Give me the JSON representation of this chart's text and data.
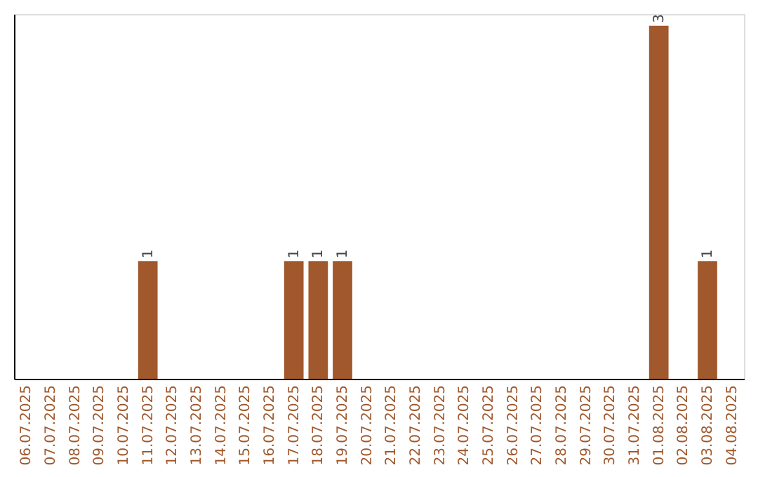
{
  "chart_data": {
    "type": "bar",
    "categories": [
      "06.07.2025",
      "07.07.2025",
      "08.07.2025",
      "09.07.2025",
      "10.07.2025",
      "11.07.2025",
      "12.07.2025",
      "13.07.2025",
      "14.07.2025",
      "15.07.2025",
      "16.07.2025",
      "17.07.2025",
      "18.07.2025",
      "19.07.2025",
      "20.07.2025",
      "21.07.2025",
      "22.07.2025",
      "23.07.2025",
      "24.07.2025",
      "25.07.2025",
      "26.07.2025",
      "27.07.2025",
      "28.07.2025",
      "29.07.2025",
      "30.07.2025",
      "31.07.2025",
      "01.08.2025",
      "02.08.2025",
      "03.08.2025",
      "04.08.2025"
    ],
    "values": [
      0,
      0,
      0,
      0,
      0,
      1,
      0,
      0,
      0,
      0,
      0,
      1,
      1,
      1,
      0,
      0,
      0,
      0,
      0,
      0,
      0,
      0,
      0,
      0,
      0,
      0,
      3,
      0,
      1,
      0
    ],
    "value_labels": [
      null,
      null,
      null,
      null,
      null,
      "1",
      null,
      null,
      null,
      null,
      null,
      "1",
      "1",
      "1",
      null,
      null,
      null,
      null,
      null,
      null,
      null,
      null,
      null,
      null,
      null,
      null,
      "3",
      null,
      "1",
      null
    ],
    "color": "#a0582c",
    "ylim": [
      0,
      3.1
    ],
    "tick_labels": "x"
  }
}
